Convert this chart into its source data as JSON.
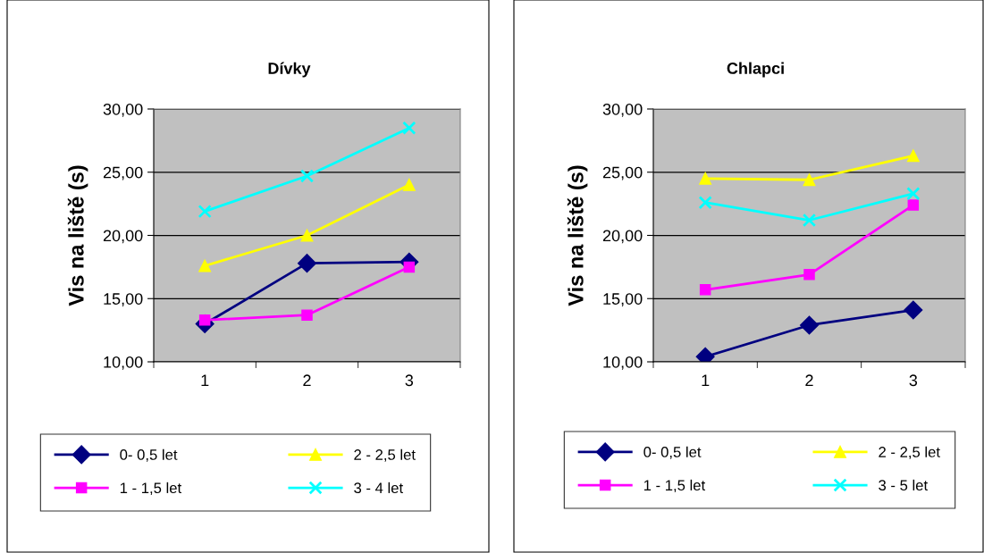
{
  "chart_data": [
    {
      "type": "line",
      "title": "Dívky",
      "ylabel": "Vis na liště (s)",
      "categories": [
        "1",
        "2",
        "3"
      ],
      "ylim": [
        10,
        30
      ],
      "yticks": [
        {
          "value": 10,
          "label": "10,00"
        },
        {
          "value": 15,
          "label": "15,00"
        },
        {
          "value": 20,
          "label": "20,00"
        },
        {
          "value": 25,
          "label": "25,00"
        },
        {
          "value": 30,
          "label": "30,00"
        }
      ],
      "grid": "y",
      "legend": "bottom",
      "series": [
        {
          "name": "0- 0,5 let",
          "color": "#000080",
          "marker": "diamond",
          "values": [
            13.0,
            17.8,
            17.9
          ]
        },
        {
          "name": "1 - 1,5 let",
          "color": "#ff00ff",
          "marker": "square",
          "values": [
            13.3,
            13.7,
            17.5
          ]
        },
        {
          "name": "2 - 2,5 let",
          "color": "#ffff00",
          "marker": "triangle",
          "values": [
            17.6,
            20.0,
            24.0
          ]
        },
        {
          "name": "3 - 4 let",
          "color": "#00ffff",
          "marker": "cross",
          "values": [
            21.9,
            24.7,
            28.5
          ]
        }
      ]
    },
    {
      "type": "line",
      "title": "Chlapci",
      "ylabel": "Vis na liště (s)",
      "categories": [
        "1",
        "2",
        "3"
      ],
      "ylim": [
        10,
        30
      ],
      "yticks": [
        {
          "value": 10,
          "label": "10,00"
        },
        {
          "value": 15,
          "label": "15,00"
        },
        {
          "value": 20,
          "label": "20,00"
        },
        {
          "value": 25,
          "label": "25,00"
        },
        {
          "value": 30,
          "label": "30,00"
        }
      ],
      "grid": "y",
      "legend": "bottom",
      "series": [
        {
          "name": "0- 0,5 let",
          "color": "#000080",
          "marker": "diamond",
          "values": [
            10.4,
            12.9,
            14.1
          ]
        },
        {
          "name": "1 - 1,5 let",
          "color": "#ff00ff",
          "marker": "square",
          "values": [
            15.7,
            16.9,
            22.4
          ]
        },
        {
          "name": "2 - 2,5 let",
          "color": "#ffff00",
          "marker": "triangle",
          "values": [
            24.5,
            24.4,
            26.3
          ]
        },
        {
          "name": "3 - 5 let",
          "color": "#00ffff",
          "marker": "cross",
          "values": [
            22.6,
            21.2,
            23.3
          ]
        }
      ]
    }
  ]
}
